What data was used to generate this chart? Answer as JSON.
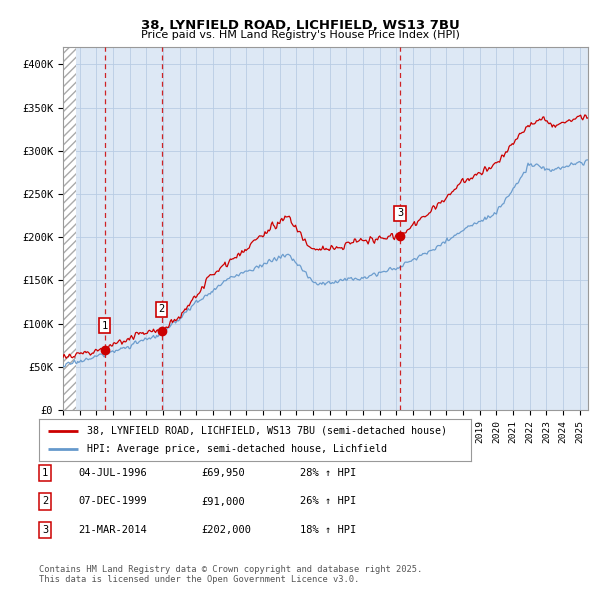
{
  "title1": "38, LYNFIELD ROAD, LICHFIELD, WS13 7BU",
  "title2": "Price paid vs. HM Land Registry's House Price Index (HPI)",
  "xlim_start": 1994.0,
  "xlim_end": 2025.5,
  "ylim_min": 0,
  "ylim_max": 420000,
  "yticks": [
    0,
    50000,
    100000,
    150000,
    200000,
    250000,
    300000,
    350000,
    400000
  ],
  "ytick_labels": [
    "£0",
    "£50K",
    "£100K",
    "£150K",
    "£200K",
    "£250K",
    "£300K",
    "£350K",
    "£400K"
  ],
  "sale_dates": [
    1996.5,
    1999.92,
    2014.22
  ],
  "sale_prices": [
    69950,
    91000,
    202000
  ],
  "sale_labels": [
    "1",
    "2",
    "3"
  ],
  "vline_color": "#cc0000",
  "red_line_color": "#cc0000",
  "blue_line_color": "#6699cc",
  "legend_label_red": "38, LYNFIELD ROAD, LICHFIELD, WS13 7BU (semi-detached house)",
  "legend_label_blue": "HPI: Average price, semi-detached house, Lichfield",
  "table_rows": [
    [
      "1",
      "04-JUL-1996",
      "£69,950",
      "28% ↑ HPI"
    ],
    [
      "2",
      "07-DEC-1999",
      "£91,000",
      "26% ↑ HPI"
    ],
    [
      "3",
      "21-MAR-2014",
      "£202,000",
      "18% ↑ HPI"
    ]
  ],
  "footer_text": "Contains HM Land Registry data © Crown copyright and database right 2025.\nThis data is licensed under the Open Government Licence v3.0.",
  "bg_color": "#dde8f5",
  "grid_color": "#b8cce4",
  "hatch_region_end": 1994.75
}
